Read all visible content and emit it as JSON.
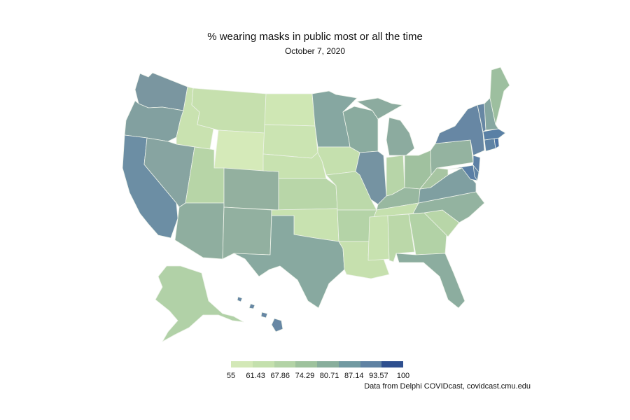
{
  "header": {
    "title": "% wearing masks in public most or all the time",
    "date": "October  7, 2020"
  },
  "legend": {
    "ticks": [
      "55",
      "61.43",
      "67.86",
      "74.29",
      "80.71",
      "87.14",
      "93.57",
      "100"
    ],
    "colors": [
      "#d3e8b7",
      "#c4e0ad",
      "#b3d3a6",
      "#9ec29d",
      "#88ae9c",
      "#7199a1",
      "#5f82a3",
      "#2e4f8f"
    ]
  },
  "source": "Data from Delphi COVIDcast, covidcast.cmu.edu"
}
